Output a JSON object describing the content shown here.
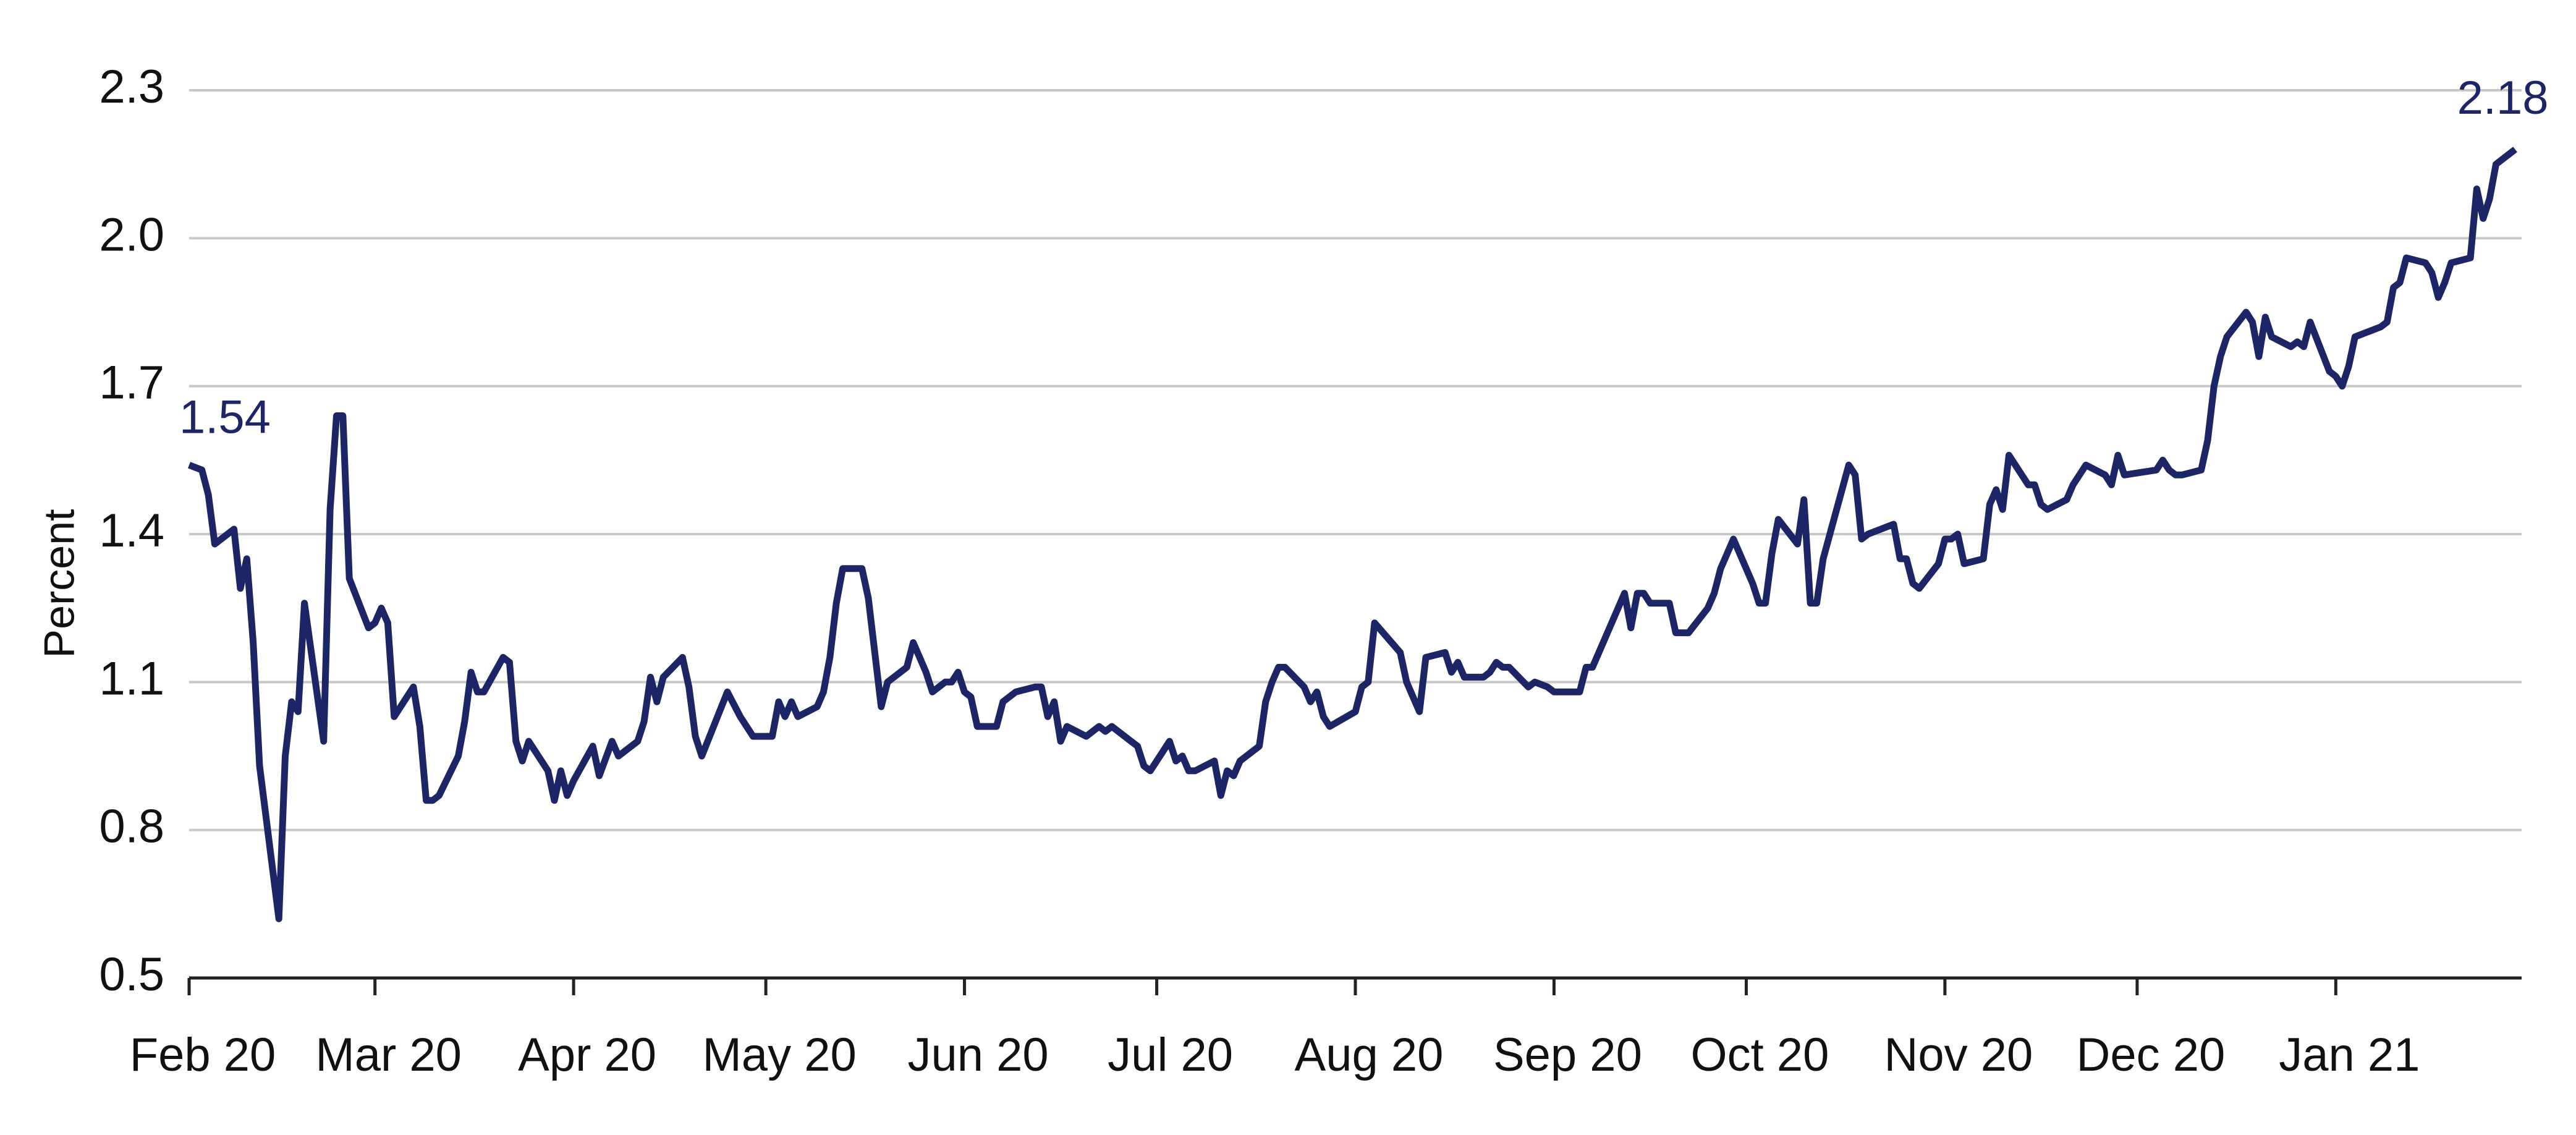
{
  "chart_data": {
    "type": "line",
    "y_label": "Percent",
    "color": "#1c2566",
    "x": [
      0,
      2,
      3,
      4,
      7,
      8,
      9,
      10,
      11,
      14,
      15,
      16,
      17,
      18,
      21,
      22,
      23,
      24,
      25,
      28,
      29,
      30,
      31,
      32,
      35,
      36,
      37,
      38,
      39,
      42,
      43,
      44,
      45,
      46,
      49,
      50,
      51,
      52,
      53,
      56,
      57,
      58,
      59,
      60,
      63,
      64,
      66,
      67,
      70,
      71,
      72,
      73,
      74,
      77,
      78,
      79,
      80,
      84,
      86,
      88,
      91,
      92,
      93,
      94,
      95,
      98,
      99,
      100,
      101,
      102,
      105,
      106,
      108,
      109,
      112,
      113,
      114,
      115,
      116,
      118,
      119,
      120,
      121,
      122,
      123,
      126,
      127,
      129,
      132,
      133,
      134,
      135,
      136,
      137,
      140,
      141,
      142,
      143,
      144,
      147,
      148,
      149,
      150,
      151,
      153,
      154,
      155,
      156,
      157,
      160,
      161,
      162,
      163,
      164,
      167,
      168,
      169,
      170,
      171,
      174,
      175,
      176,
      177,
      178,
      182,
      183,
      184,
      185,
      189,
      190,
      191,
      192,
      193,
      196,
      197,
      198,
      199,
      202,
      203,
      204,
      205,
      206,
      209,
      210,
      212,
      213,
      216,
      217,
      218,
      219,
      220,
      224,
      225,
      226,
      227,
      228,
      231,
      232,
      233,
      234,
      237,
      238,
      239,
      240,
      241,
      244,
      245,
      246,
      247,
      248,
      251,
      252,
      253,
      254,
      255,
      259,
      260,
      261,
      262,
      266,
      267,
      268,
      269,
      270,
      273,
      274,
      275,
      276,
      277,
      280,
      281,
      282,
      283,
      284,
      287,
      288,
      289,
      290,
      293,
      294,
      295,
      296,
      299,
      300,
      301,
      302,
      307,
      308,
      309,
      310,
      311,
      314,
      315,
      316,
      317,
      318,
      321,
      322,
      323,
      324,
      325,
      328,
      329,
      330,
      331,
      334,
      335,
      336,
      337,
      338,
      342,
      343,
      344,
      345,
      346,
      349,
      350,
      351,
      352,
      353,
      356,
      357,
      358,
      359,
      360,
      363
    ],
    "values": [
      1.54,
      1.53,
      1.48,
      1.38,
      1.41,
      1.29,
      1.35,
      1.18,
      0.93,
      0.62,
      0.95,
      1.06,
      1.04,
      1.26,
      0.98,
      1.45,
      1.64,
      1.64,
      1.31,
      1.21,
      1.22,
      1.25,
      1.22,
      1.03,
      1.09,
      1.01,
      0.86,
      0.86,
      0.87,
      0.95,
      1.02,
      1.12,
      1.08,
      1.08,
      1.15,
      1.14,
      0.98,
      0.94,
      0.98,
      0.92,
      0.86,
      0.92,
      0.87,
      0.9,
      0.97,
      0.91,
      0.98,
      0.95,
      0.98,
      1.02,
      1.11,
      1.06,
      1.11,
      1.15,
      1.09,
      0.99,
      0.95,
      1.08,
      1.03,
      0.99,
      0.99,
      1.06,
      1.03,
      1.06,
      1.03,
      1.05,
      1.08,
      1.15,
      1.26,
      1.33,
      1.33,
      1.27,
      1.05,
      1.1,
      1.13,
      1.18,
      1.15,
      1.12,
      1.08,
      1.1,
      1.1,
      1.12,
      1.08,
      1.07,
      1.01,
      1.01,
      1.06,
      1.08,
      1.09,
      1.09,
      1.03,
      1.06,
      0.98,
      1.01,
      0.99,
      1.0,
      1.01,
      1.0,
      1.01,
      0.98,
      0.97,
      0.93,
      0.92,
      0.94,
      0.98,
      0.94,
      0.95,
      0.92,
      0.92,
      0.94,
      0.87,
      0.92,
      0.91,
      0.94,
      0.97,
      1.06,
      1.1,
      1.13,
      1.13,
      1.09,
      1.06,
      1.08,
      1.03,
      1.01,
      1.04,
      1.09,
      1.1,
      1.22,
      1.16,
      1.1,
      1.07,
      1.04,
      1.15,
      1.16,
      1.12,
      1.14,
      1.11,
      1.11,
      1.12,
      1.14,
      1.13,
      1.13,
      1.09,
      1.1,
      1.09,
      1.08,
      1.08,
      1.08,
      1.13,
      1.13,
      1.16,
      1.28,
      1.21,
      1.28,
      1.28,
      1.26,
      1.26,
      1.2,
      1.2,
      1.2,
      1.25,
      1.28,
      1.33,
      1.36,
      1.39,
      1.3,
      1.26,
      1.26,
      1.36,
      1.43,
      1.38,
      1.47,
      1.26,
      1.26,
      1.35,
      1.54,
      1.52,
      1.39,
      1.4,
      1.42,
      1.35,
      1.35,
      1.3,
      1.29,
      1.34,
      1.39,
      1.39,
      1.4,
      1.34,
      1.35,
      1.46,
      1.49,
      1.45,
      1.56,
      1.5,
      1.5,
      1.46,
      1.45,
      1.47,
      1.5,
      1.52,
      1.54,
      1.52,
      1.5,
      1.56,
      1.52,
      1.53,
      1.55,
      1.53,
      1.52,
      1.52,
      1.53,
      1.59,
      1.7,
      1.76,
      1.8,
      1.85,
      1.83,
      1.76,
      1.84,
      1.8,
      1.78,
      1.79,
      1.78,
      1.83,
      1.73,
      1.72,
      1.7,
      1.74,
      1.8,
      1.82,
      1.83,
      1.9,
      1.91,
      1.96,
      1.95,
      1.93,
      1.88,
      1.91,
      1.95,
      1.96,
      2.1,
      2.04,
      2.08,
      2.15,
      2.18
    ],
    "xlim": [
      0,
      364
    ],
    "xticks": [
      {
        "value": 0,
        "label": "Feb 20"
      },
      {
        "value": 29,
        "label": "Mar 20"
      },
      {
        "value": 60,
        "label": "Apr 20"
      },
      {
        "value": 90,
        "label": "May 20"
      },
      {
        "value": 121,
        "label": "Jun 20"
      },
      {
        "value": 151,
        "label": "Jul 20"
      },
      {
        "value": 182,
        "label": "Aug 20"
      },
      {
        "value": 213,
        "label": "Sep 20"
      },
      {
        "value": 243,
        "label": "Oct 20"
      },
      {
        "value": 274,
        "label": "Nov 20"
      },
      {
        "value": 304,
        "label": "Dec 20"
      },
      {
        "value": 335,
        "label": "Jan 21"
      }
    ],
    "ylim": [
      0.5,
      2.3
    ],
    "yticks": [
      0.5,
      0.8,
      1.1,
      1.4,
      1.7,
      {
        "value": 2,
        "label": "2.0"
      },
      2.3
    ],
    "grid": true
  }
}
